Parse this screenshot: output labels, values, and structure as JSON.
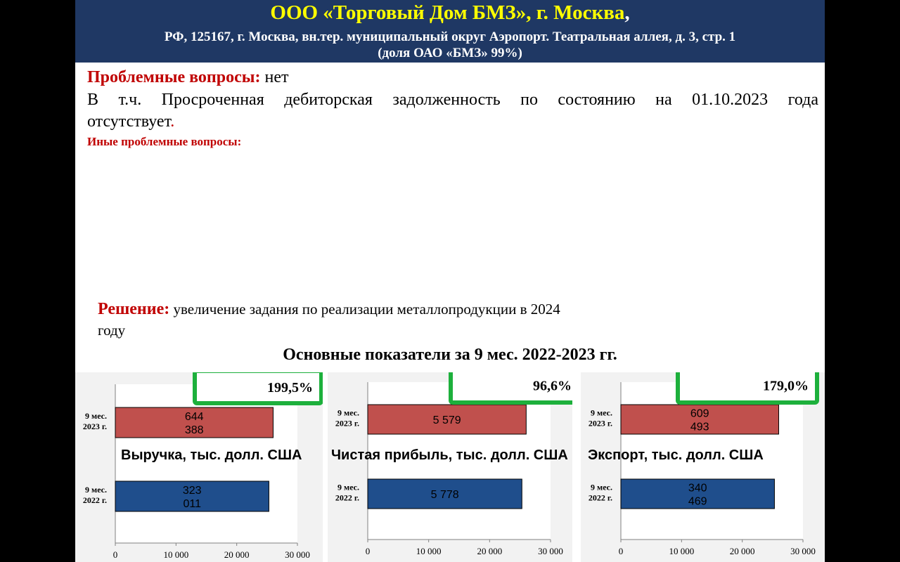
{
  "header": {
    "company": "ООО «Торговый Дом БМЗ», г. Москва",
    "comma": ",",
    "address": "РФ, 125167, г. Москва, вн.тер. муниципальный округ Аэропорт. Театральная аллея, д. 3, стр. 1",
    "share": "(доля ОАО «БМЗ» 99%)"
  },
  "body": {
    "problems_label": "Проблемные вопросы:",
    "problems_value": "нет",
    "overdue_line1": "В т.ч. Просроченная дебиторская задолженность по состоянию на 01.10.2023 года",
    "overdue_line2": "отсутствует",
    "overdue_dot": ".",
    "other_issues_label": "Иные проблемные вопросы:",
    "solution_label": "Решение:",
    "solution_line1": "увеличение задания по реализации металлопродукции в 2024",
    "solution_line2": "году",
    "charts_title": "Основные показатели за 9 мес. 2022-2023 гг."
  },
  "colors": {
    "header_bg": "#1f3864",
    "header_title": "#ffff00",
    "accent_red": "#c00000",
    "bar_2023": "#c0504d",
    "bar_2022": "#1f4e8c",
    "callout_border": "#1db03c",
    "panel_bg": "#f2f2f2"
  },
  "chart_data": [
    {
      "type": "bar",
      "orientation": "horizontal",
      "title": "Выручка, тыс. долл. США",
      "categories": [
        "9 мес. 2023 г.",
        "9 мес. 2022 г."
      ],
      "category_lines": [
        [
          "9 мес.",
          "2023 г."
        ],
        [
          "9 мес.",
          "2022 г."
        ]
      ],
      "values": [
        26000,
        25300
      ],
      "data_labels": [
        [
          "644",
          "388"
        ],
        [
          "323",
          "011"
        ]
      ],
      "growth": "199,5%",
      "xlim": [
        0,
        30000
      ],
      "xticks": [
        "0",
        "10 000",
        "20 000",
        "30 000"
      ]
    },
    {
      "type": "bar",
      "orientation": "horizontal",
      "title": "Чистая прибыль, тыс. долл. США",
      "categories": [
        "9 мес. 2023 г.",
        "9 мес. 2022 г."
      ],
      "category_lines": [
        [
          "9 мес.",
          "2023 г."
        ],
        [
          "9 мес.",
          "2022 г."
        ]
      ],
      "values": [
        5579,
        5778
      ],
      "bar_extent": [
        26000,
        25300
      ],
      "data_labels": [
        [
          "5 579"
        ],
        [
          "5 778"
        ]
      ],
      "growth": "96,6%",
      "xlim": [
        0,
        30000
      ],
      "xticks": [
        "0",
        "10 000",
        "20 000",
        "30 000"
      ]
    },
    {
      "type": "bar",
      "orientation": "horizontal",
      "title": "Экспорт, тыс. долл. США",
      "categories": [
        "9 мес. 2023 г.",
        "9 мес. 2022 г."
      ],
      "category_lines": [
        [
          "9 мес.",
          "2023 г."
        ],
        [
          "9 мес.",
          "2022 г."
        ]
      ],
      "values": [
        26000,
        25300
      ],
      "data_labels": [
        [
          "609",
          "493"
        ],
        [
          "340",
          "469"
        ]
      ],
      "growth": "179,0%",
      "xlim": [
        0,
        30000
      ],
      "xticks": [
        "0",
        "10 000",
        "20 000",
        "30 000"
      ]
    }
  ]
}
